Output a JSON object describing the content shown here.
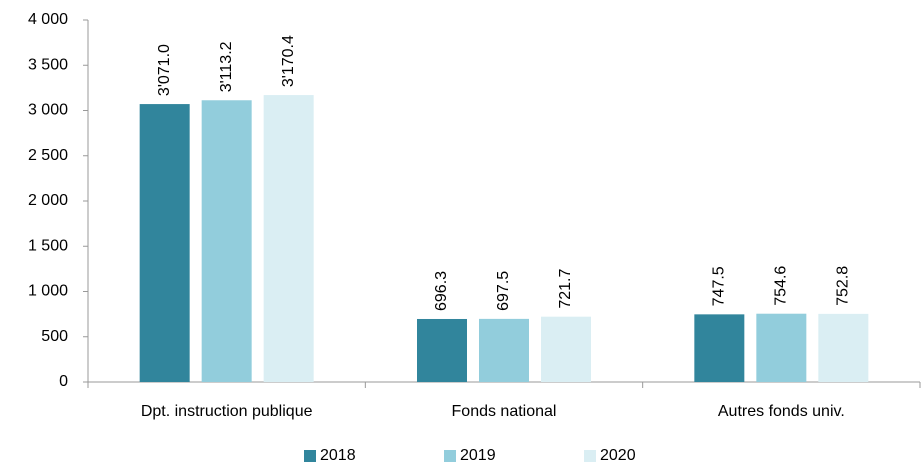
{
  "chart_data": {
    "type": "bar",
    "categories": [
      "Dpt. instruction publique",
      "Fonds national",
      "Autres fonds univ."
    ],
    "series": [
      {
        "name": "2018",
        "color": "#31859c",
        "values": [
          3071.0,
          696.3,
          747.5
        ],
        "value_labels": [
          "3'071.0",
          "696.3",
          "747.5"
        ]
      },
      {
        "name": "2019",
        "color": "#92cddc",
        "values": [
          3113.2,
          697.5,
          754.6
        ],
        "value_labels": [
          "3'113.2",
          "697.5",
          "754.6"
        ]
      },
      {
        "name": "2020",
        "color": "#daeef3",
        "values": [
          3170.4,
          721.7,
          752.8
        ],
        "value_labels": [
          "3'170.4",
          "721.7",
          "752.8"
        ]
      }
    ],
    "ylim": [
      0,
      4000
    ],
    "yticks": [
      0,
      500,
      {
        "value": 1000,
        "label": "1 000"
      },
      {
        "value": 1500,
        "label": "1 500"
      },
      {
        "value": 2000,
        "label": "2 000"
      },
      {
        "value": 2500,
        "label": "2 500"
      },
      {
        "value": 3000,
        "label": "3 000"
      },
      {
        "value": 3500,
        "label": "3 500"
      },
      {
        "value": 4000,
        "label": "4 000"
      }
    ],
    "legend": "bottom"
  }
}
